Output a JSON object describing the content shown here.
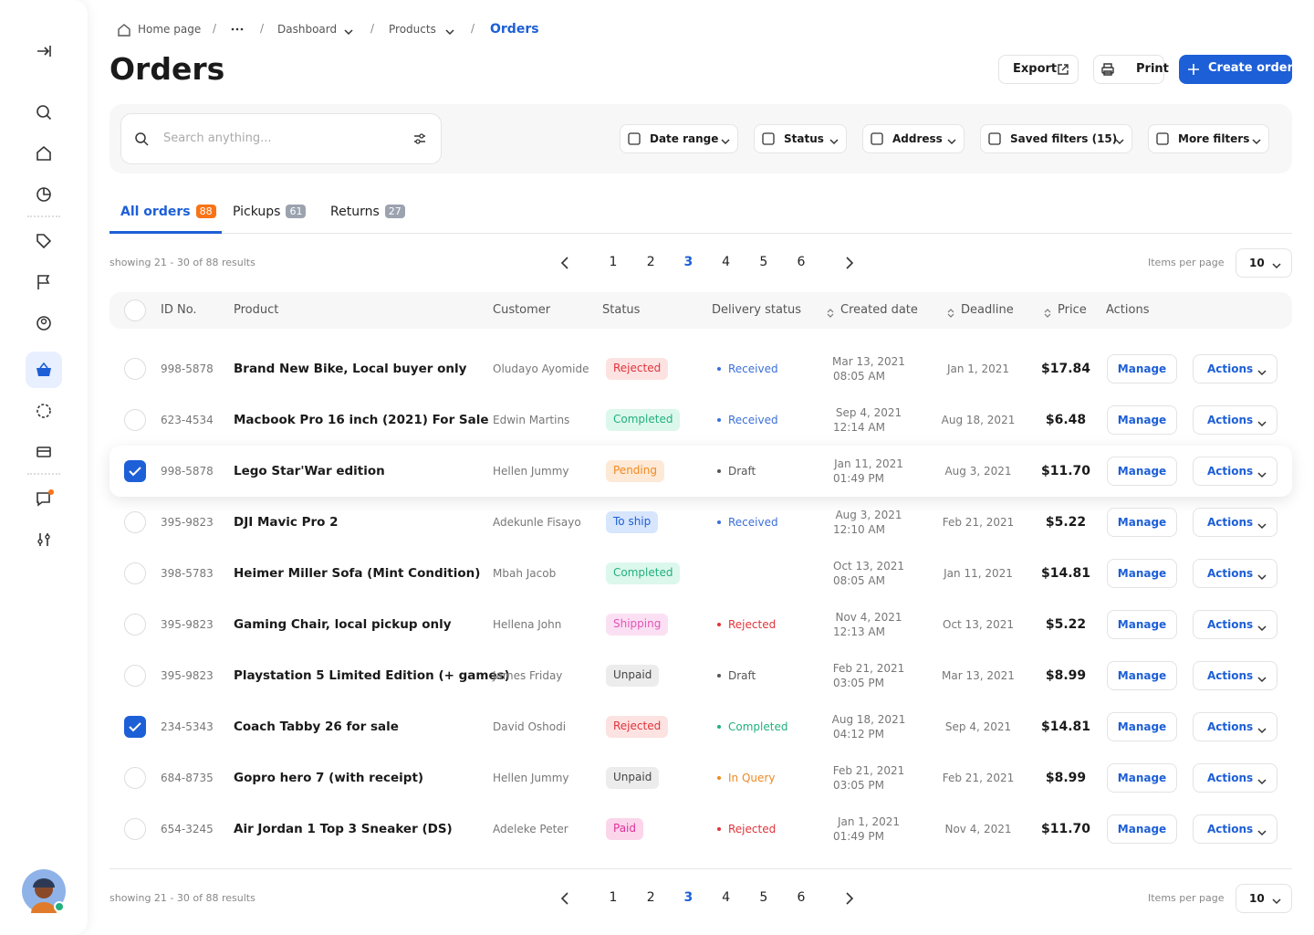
{
  "breadcrumb": [
    "Home page",
    "Dashboard",
    "Products",
    "Orders"
  ],
  "header": {
    "title": "Orders",
    "export": "Export",
    "print": "Print",
    "create": "Create order"
  },
  "search": {
    "placeholder": "Search anything..."
  },
  "filters": [
    "Date range",
    "Status",
    "Address",
    "Saved filters (15)",
    "More filters"
  ],
  "tabs": [
    {
      "label": "All orders",
      "count": 88,
      "color": "#f97316"
    },
    {
      "label": "Pickups",
      "count": 61,
      "color": "#9ca3af"
    },
    {
      "label": "Returns",
      "count": 27,
      "color": "#9ca3af"
    }
  ],
  "pagination": {
    "showing": "showing 21 - 30 of 88 results",
    "pages": [
      1,
      2,
      3,
      4,
      5,
      6
    ],
    "current": 3,
    "per_page_label": "Items per page",
    "per_page": 10
  },
  "table": {
    "columns": [
      "ID No.",
      "Product",
      "Customer",
      "Status",
      "Delivery status",
      "Created date",
      "Deadline",
      "Price",
      "Actions"
    ],
    "manage": "Manage",
    "actions": "Actions",
    "rows": [
      {
        "id": "998-5878",
        "product": "Brand New Bike, Local buyer only",
        "customer": "Oludayo Ayomide",
        "status": {
          "label": "Rejected",
          "color": "#e0343b",
          "bg": "#fde2e2"
        },
        "delivery": {
          "label": "Received",
          "color": "#3b6fd8"
        },
        "created_date": "Mar 13, 2021",
        "created_time": "08:05 AM",
        "deadline": "Jan 1, 2021",
        "price": "$17.84",
        "checked": false
      },
      {
        "id": "623-4534",
        "product": "Macbook Pro 16 inch (2021) For Sale",
        "customer": "Edwin Martins",
        "status": {
          "label": "Completed",
          "color": "#22b07d",
          "bg": "#dcf7ec"
        },
        "delivery": {
          "label": "Received",
          "color": "#3b6fd8"
        },
        "created_date": "Sep 4, 2021",
        "created_time": "12:14 AM",
        "deadline": "Aug 18, 2021",
        "price": "$6.48",
        "checked": false
      },
      {
        "id": "998-5878",
        "product": "Lego Star'War edition",
        "customer": "Hellen Jummy",
        "status": {
          "label": "Pending",
          "color": "#f08a24",
          "bg": "#fde9d6"
        },
        "delivery": {
          "label": "Draft",
          "color": "#555555"
        },
        "created_date": "Jan 11, 2021",
        "created_time": "01:49 PM",
        "deadline": "Aug 3, 2021",
        "price": "$11.70",
        "checked": true
      },
      {
        "id": "395-9823",
        "product": "DJI Mavic Pro 2",
        "customer": "Adekunle Fisayo",
        "status": {
          "label": "To ship",
          "color": "#1d5fd6",
          "bg": "#d7e5fd"
        },
        "delivery": {
          "label": "Received",
          "color": "#3b6fd8"
        },
        "created_date": "Aug 3, 2021",
        "created_time": "12:10 AM",
        "deadline": "Feb 21, 2021",
        "price": "$5.22",
        "checked": false
      },
      {
        "id": "398-5783",
        "product": "Heimer Miller Sofa (Mint Condition)",
        "customer": "Mbah Jacob",
        "status": {
          "label": "Completed",
          "color": "#22b07d",
          "bg": "#dcf7ec"
        },
        "delivery": null,
        "created_date": "Oct 13, 2021",
        "created_time": "08:05 AM",
        "deadline": "Jan 11, 2021",
        "price": "$14.81",
        "checked": false
      },
      {
        "id": "395-9823",
        "product": "Gaming Chair, local pickup only",
        "customer": "Hellena John",
        "status": {
          "label": "Shipping",
          "color": "#e055b8",
          "bg": "#fbe0f3"
        },
        "delivery": {
          "label": "Rejected",
          "color": "#e0343b"
        },
        "created_date": "Nov 4, 2021",
        "created_time": "12:13 AM",
        "deadline": "Oct 13, 2021",
        "price": "$5.22",
        "checked": false
      },
      {
        "id": "395-9823",
        "product": "Playstation 5 Limited Edition (+ games)",
        "customer": "James Friday",
        "status": {
          "label": "Unpaid",
          "color": "#444444",
          "bg": "#ececec"
        },
        "delivery": {
          "label": "Draft",
          "color": "#555555"
        },
        "created_date": "Feb 21, 2021",
        "created_time": "03:05 PM",
        "deadline": "Mar 13, 2021",
        "price": "$8.99",
        "checked": false
      },
      {
        "id": "234-5343",
        "product": "Coach Tabby 26 for sale",
        "customer": "David Oshodi",
        "status": {
          "label": "Rejected",
          "color": "#e0343b",
          "bg": "#fde2e2"
        },
        "delivery": {
          "label": "Completed",
          "color": "#22b07d"
        },
        "created_date": "Aug 18, 2021",
        "created_time": "04:12 PM",
        "deadline": "Sep 4, 2021",
        "price": "$14.81",
        "checked": true
      },
      {
        "id": "684-8735",
        "product": "Gopro hero 7 (with receipt)",
        "customer": "Hellen Jummy",
        "status": {
          "label": "Unpaid",
          "color": "#444444",
          "bg": "#ececec"
        },
        "delivery": {
          "label": "In Query",
          "color": "#f08a24"
        },
        "created_date": "Feb 21, 2021",
        "created_time": "03:05 PM",
        "deadline": "Feb 21, 2021",
        "price": "$8.99",
        "checked": false
      },
      {
        "id": "654-3245",
        "product": "Air Jordan 1 Top 3 Sneaker (DS)",
        "customer": "Adeleke Peter",
        "status": {
          "label": "Paid",
          "color": "#e0319b",
          "bg": "#fbd6ea"
        },
        "delivery": {
          "label": "Rejected",
          "color": "#e0343b"
        },
        "created_date": "Jan 1, 2021",
        "created_time": "01:49 PM",
        "deadline": "Nov 4, 2021",
        "price": "$11.70",
        "checked": false
      }
    ]
  }
}
